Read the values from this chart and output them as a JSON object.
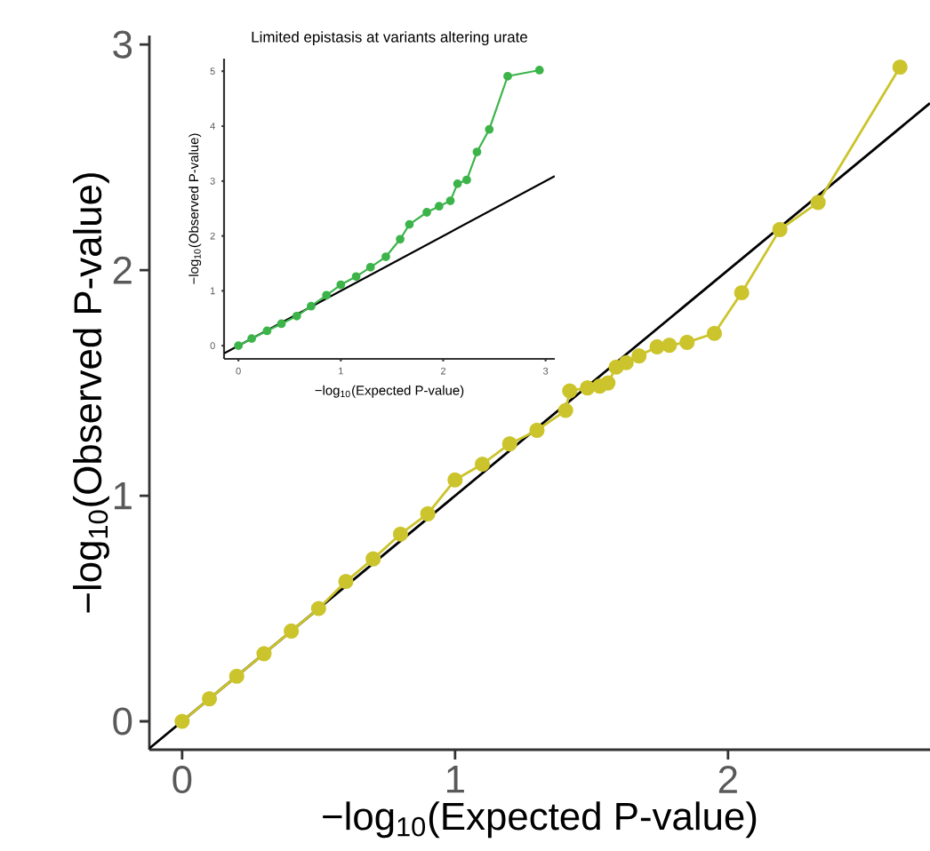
{
  "chart_data": [
    {
      "type": "line",
      "xlabel": "−log$_{10}$(Expected P-value)",
      "ylabel": "−log$_{10}$(Observed P-value)",
      "xlim": [
        -0.12,
        2.74
      ],
      "ylim": [
        -0.126,
        3.04
      ],
      "xticks": [
        0,
        1,
        2
      ],
      "yticks": [
        0,
        1,
        2,
        3
      ],
      "marker": "circle",
      "series": [
        {
          "color": "#000000",
          "marker": "none",
          "x": [
            -0.12,
            2.74
          ],
          "values": [
            -0.12,
            2.74
          ]
        },
        {
          "color": "#cbc42c",
          "x": [
            0,
            0.1,
            0.2,
            0.3,
            0.4,
            0.5,
            0.6,
            0.7,
            0.8,
            0.9,
            1.0,
            1.1,
            1.2,
            1.3,
            1.405,
            1.42,
            1.485,
            1.53,
            1.56,
            1.59,
            1.627,
            1.674,
            1.74,
            1.785,
            1.85,
            1.95,
            2.05,
            2.19,
            2.33,
            2.63
          ],
          "values": [
            0,
            0.1,
            0.2,
            0.3,
            0.4,
            0.5,
            0.62,
            0.72,
            0.83,
            0.92,
            1.07,
            1.14,
            1.23,
            1.29,
            1.378,
            1.465,
            1.478,
            1.486,
            1.5,
            1.57,
            1.59,
            1.62,
            1.66,
            1.667,
            1.68,
            1.72,
            1.9,
            2.18,
            2.3,
            2.9
          ]
        }
      ]
    },
    {
      "type": "line",
      "title": "Limited epistasis at variants altering urate",
      "xlabel": "−log$_{10}$(Expected P-value)",
      "ylabel": "−log$_{10}$(Observed P-value)",
      "xlim": [
        -0.14,
        3.09
      ],
      "ylim": [
        -0.24,
        5.23
      ],
      "xticks": [
        0,
        1,
        2,
        3
      ],
      "yticks": [
        0,
        1,
        2,
        3,
        4,
        5
      ],
      "marker": "circle",
      "series": [
        {
          "color": "#000000",
          "marker": "none",
          "x": [
            -0.14,
            3.09
          ],
          "values": [
            -0.14,
            3.09
          ]
        },
        {
          "color": "#3cb44a",
          "x": [
            0,
            0.13,
            0.28,
            0.42,
            0.57,
            0.71,
            0.86,
            1.0,
            1.15,
            1.29,
            1.44,
            1.58,
            1.67,
            1.84,
            1.96,
            2.07,
            2.14,
            2.23,
            2.33,
            2.45,
            2.63,
            2.94
          ],
          "values": [
            0,
            0.13,
            0.27,
            0.4,
            0.54,
            0.72,
            0.92,
            1.11,
            1.26,
            1.43,
            1.62,
            1.94,
            2.21,
            2.43,
            2.54,
            2.64,
            2.95,
            3.02,
            3.53,
            3.94,
            4.91,
            5.02
          ]
        }
      ]
    }
  ]
}
